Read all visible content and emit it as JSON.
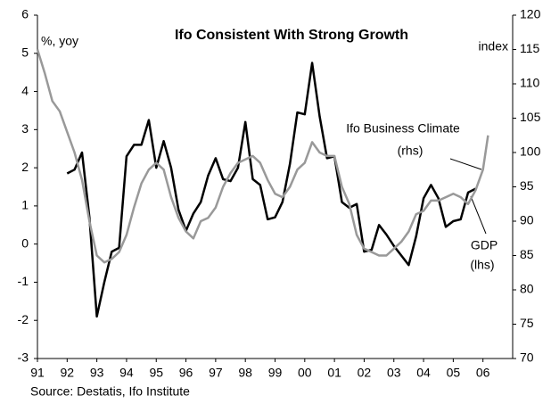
{
  "chart_data": {
    "type": "line",
    "title": "Ifo Consistent With Strong Growth",
    "y_label": "%, yoy",
    "y2_label": "index",
    "source": "Source: Destatis, Ifo Institute",
    "annotations": [
      "Ifo Business Climate",
      "(rhs)",
      "GDP",
      "(lhs)"
    ],
    "xlim": [
      1991,
      2007
    ],
    "xticks": [
      {
        "value": 1991,
        "label": "91"
      },
      {
        "value": 1992,
        "label": "92"
      },
      {
        "value": 1993,
        "label": "93"
      },
      {
        "value": 1994,
        "label": "94"
      },
      {
        "value": 1995,
        "label": "95"
      },
      {
        "value": 1996,
        "label": "96"
      },
      {
        "value": 1997,
        "label": "97"
      },
      {
        "value": 1998,
        "label": "98"
      },
      {
        "value": 1999,
        "label": "99"
      },
      {
        "value": 2000,
        "label": "00"
      },
      {
        "value": 2001,
        "label": "01"
      },
      {
        "value": 2002,
        "label": "02"
      },
      {
        "value": 2003,
        "label": "03"
      },
      {
        "value": 2004,
        "label": "04"
      },
      {
        "value": 2005,
        "label": "05"
      },
      {
        "value": 2006,
        "label": "06"
      }
    ],
    "ylim": [
      -3,
      6
    ],
    "yticks": [
      -3,
      -2,
      -1,
      0,
      1,
      2,
      3,
      4,
      5,
      6
    ],
    "y2lim": [
      70,
      120
    ],
    "y2ticks": [
      70,
      75,
      80,
      85,
      90,
      95,
      100,
      105,
      110,
      115,
      120
    ],
    "series": [
      {
        "name": "GDP",
        "color": "#000000",
        "axis": "y",
        "x": [
          1992.0,
          1992.25,
          1992.5,
          1992.75,
          1993.0,
          1993.25,
          1993.5,
          1993.75,
          1994.0,
          1994.25,
          1994.5,
          1994.75,
          1995.0,
          1995.25,
          1995.5,
          1995.75,
          1996.0,
          1996.25,
          1996.5,
          1996.75,
          1997.0,
          1997.25,
          1997.5,
          1997.75,
          1998.0,
          1998.25,
          1998.5,
          1998.75,
          1999.0,
          1999.25,
          1999.5,
          1999.75,
          2000.0,
          2000.25,
          2000.5,
          2000.75,
          2001.0,
          2001.25,
          2001.5,
          2001.75,
          2002.0,
          2002.25,
          2002.5,
          2002.75,
          2003.0,
          2003.25,
          2003.5,
          2003.75,
          2004.0,
          2004.25,
          2004.5,
          2004.75,
          2005.0,
          2005.25,
          2005.5,
          2005.75
        ],
        "values": [
          1.85,
          1.95,
          2.4,
          0.7,
          -1.9,
          -1.0,
          -0.2,
          -0.1,
          2.3,
          2.6,
          2.6,
          3.25,
          2.0,
          2.7,
          2.0,
          0.9,
          0.35,
          0.8,
          1.1,
          1.8,
          2.25,
          1.7,
          1.65,
          2.0,
          3.2,
          1.7,
          1.55,
          0.65,
          0.7,
          1.1,
          2.1,
          3.45,
          3.4,
          4.75,
          3.35,
          2.25,
          2.3,
          1.1,
          0.95,
          1.05,
          -0.2,
          -0.15,
          0.5,
          0.25,
          -0.05,
          -0.3,
          -0.55,
          0.2,
          1.2,
          1.55,
          1.2,
          0.45,
          0.6,
          0.65,
          1.35,
          1.45
        ]
      },
      {
        "name": "Ifo Business Climate",
        "color": "#999999",
        "axis": "y2",
        "x": [
          1991.0,
          1991.25,
          1991.5,
          1991.75,
          1992.0,
          1992.25,
          1992.5,
          1992.75,
          1993.0,
          1993.25,
          1993.5,
          1993.75,
          1994.0,
          1994.25,
          1994.5,
          1994.75,
          1995.0,
          1995.25,
          1995.5,
          1995.75,
          1996.0,
          1996.25,
          1996.5,
          1996.75,
          1997.0,
          1997.25,
          1997.5,
          1997.75,
          1998.0,
          1998.25,
          1998.5,
          1998.75,
          1999.0,
          1999.25,
          1999.5,
          1999.75,
          2000.0,
          2000.25,
          2000.5,
          2000.75,
          2001.0,
          2001.25,
          2001.5,
          2001.75,
          2002.0,
          2002.25,
          2002.5,
          2002.75,
          2003.0,
          2003.25,
          2003.5,
          2003.75,
          2004.0,
          2004.25,
          2004.5,
          2004.75,
          2005.0,
          2005.25,
          2005.5,
          2005.75,
          2006.0,
          2006.17
        ],
        "values": [
          115,
          111.5,
          107.5,
          106,
          103,
          100,
          96,
          90,
          85,
          84,
          84.5,
          85.5,
          88,
          92,
          95.5,
          97.5,
          98.5,
          97.5,
          93.5,
          90.5,
          88.5,
          87.5,
          90,
          90.5,
          92,
          95,
          97,
          98.5,
          99,
          99.5,
          98.5,
          96,
          94,
          93.5,
          95,
          97.5,
          98.5,
          101.5,
          100,
          99.5,
          99.5,
          95,
          92.5,
          88,
          86,
          85.5,
          85,
          85,
          86,
          87,
          88.5,
          91,
          91.5,
          93,
          93,
          93.5,
          94,
          93.5,
          92.5,
          94.5,
          97.5,
          102.5
        ]
      }
    ]
  }
}
